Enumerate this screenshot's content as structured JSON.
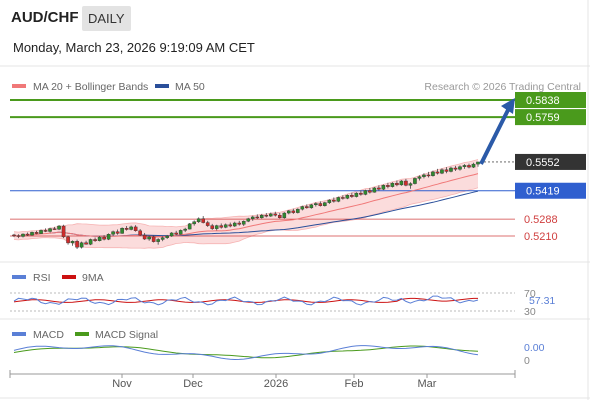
{
  "header": {
    "pair": "AUD/CHF",
    "period": "DAILY",
    "timestamp": "Monday, March 23, 2026 9:19:09 AM CET"
  },
  "legend": {
    "ma20_label": "MA 20 + Bollinger Bands",
    "ma50_label": "MA 50",
    "copyright": "Research © 2026 Trading Central"
  },
  "colors": {
    "ma20": "#f07878",
    "ma50": "#2a4f9a",
    "target": "#4a9a1c",
    "pivot": "#2f5fcf",
    "support": "#d04040",
    "last": "#333333",
    "rsi": "#5a7fd6",
    "rsi_ma": "#cc1111",
    "macd": "#5a7fd6",
    "macd_signal": "#4a9a1c"
  },
  "levels": [
    {
      "value": "0.5838",
      "kind": "target"
    },
    {
      "value": "0.5759",
      "kind": "target"
    },
    {
      "value": "0.5552",
      "kind": "last"
    },
    {
      "value": "0.5419",
      "kind": "pivot"
    },
    {
      "value": "0.5288",
      "kind": "support"
    },
    {
      "value": "0.5210",
      "kind": "support"
    }
  ],
  "rsi": {
    "title": "RSI",
    "ma_title": "9MA",
    "value": "57.31",
    "upper": "70",
    "lower": "30"
  },
  "macd": {
    "title": "MACD",
    "signal_title": "MACD Signal",
    "value": "0.00",
    "zero": "0"
  },
  "x_axis": {
    "labels": [
      "Nov",
      "Dec",
      "2026",
      "Feb",
      "Mar"
    ]
  },
  "chart_data": {
    "type": "candlestick",
    "symbol": "AUD/CHF",
    "timeframe": "DAILY",
    "ylim": [
      0.518,
      0.586
    ],
    "candles": [
      [
        0.5215,
        0.522,
        0.5205,
        0.5212
      ],
      [
        0.5212,
        0.5218,
        0.52,
        0.5208
      ],
      [
        0.5208,
        0.5222,
        0.5203,
        0.5219
      ],
      [
        0.5219,
        0.5226,
        0.521,
        0.5214
      ],
      [
        0.5214,
        0.523,
        0.5212,
        0.5227
      ],
      [
        0.5227,
        0.5234,
        0.5218,
        0.5221
      ],
      [
        0.5221,
        0.524,
        0.5219,
        0.5236
      ],
      [
        0.5236,
        0.5245,
        0.5228,
        0.5231
      ],
      [
        0.5231,
        0.5248,
        0.5226,
        0.5244
      ],
      [
        0.5244,
        0.5252,
        0.5238,
        0.5241
      ],
      [
        0.5241,
        0.526,
        0.5237,
        0.5256
      ],
      [
        0.5256,
        0.5262,
        0.52,
        0.5206
      ],
      [
        0.5206,
        0.5212,
        0.517,
        0.5178
      ],
      [
        0.5178,
        0.519,
        0.5165,
        0.5186
      ],
      [
        0.5186,
        0.5193,
        0.515,
        0.5158
      ],
      [
        0.5158,
        0.5184,
        0.5152,
        0.5179
      ],
      [
        0.5179,
        0.5188,
        0.517,
        0.5172
      ],
      [
        0.5172,
        0.5198,
        0.5168,
        0.5194
      ],
      [
        0.5194,
        0.5203,
        0.5183,
        0.5188
      ],
      [
        0.5188,
        0.521,
        0.5185,
        0.5205
      ],
      [
        0.5205,
        0.5214,
        0.519,
        0.5195
      ],
      [
        0.5195,
        0.5222,
        0.5191,
        0.5218
      ],
      [
        0.5218,
        0.5235,
        0.521,
        0.523
      ],
      [
        0.523,
        0.524,
        0.5216,
        0.5222
      ],
      [
        0.5222,
        0.525,
        0.522,
        0.5246
      ],
      [
        0.5246,
        0.5256,
        0.5235,
        0.524
      ],
      [
        0.524,
        0.5258,
        0.5236,
        0.5252
      ],
      [
        0.5252,
        0.526,
        0.523,
        0.5234
      ],
      [
        0.5234,
        0.5242,
        0.521,
        0.5214
      ],
      [
        0.5214,
        0.5224,
        0.5192,
        0.5196
      ],
      [
        0.5196,
        0.521,
        0.5188,
        0.5206
      ],
      [
        0.5206,
        0.5212,
        0.518,
        0.5184
      ],
      [
        0.5184,
        0.52,
        0.517,
        0.5194
      ],
      [
        0.5194,
        0.5208,
        0.5186,
        0.5202
      ],
      [
        0.5202,
        0.5215,
        0.5196,
        0.521
      ],
      [
        0.521,
        0.5228,
        0.5206,
        0.5224
      ],
      [
        0.5224,
        0.5234,
        0.5214,
        0.5218
      ],
      [
        0.5218,
        0.524,
        0.5216,
        0.5236
      ],
      [
        0.5236,
        0.5248,
        0.5228,
        0.5242
      ],
      [
        0.5242,
        0.527,
        0.524,
        0.5266
      ],
      [
        0.5266,
        0.5282,
        0.5258,
        0.5276
      ],
      [
        0.5276,
        0.5296,
        0.527,
        0.529
      ],
      [
        0.529,
        0.5302,
        0.5268,
        0.5272
      ],
      [
        0.5272,
        0.528,
        0.5252,
        0.5258
      ],
      [
        0.5258,
        0.5266,
        0.5238,
        0.5244
      ],
      [
        0.5244,
        0.5262,
        0.5236,
        0.5258
      ],
      [
        0.5258,
        0.5268,
        0.5244,
        0.525
      ],
      [
        0.525,
        0.5268,
        0.5246,
        0.5262
      ],
      [
        0.5262,
        0.5272,
        0.525,
        0.5256
      ],
      [
        0.5256,
        0.5276,
        0.5252,
        0.527
      ],
      [
        0.527,
        0.528,
        0.5258,
        0.5264
      ],
      [
        0.5264,
        0.5282,
        0.5256,
        0.5278
      ],
      [
        0.5278,
        0.5294,
        0.5274,
        0.529
      ],
      [
        0.529,
        0.5304,
        0.528,
        0.5298
      ],
      [
        0.5298,
        0.531,
        0.5288,
        0.5294
      ],
      [
        0.5294,
        0.5312,
        0.529,
        0.5306
      ],
      [
        0.5306,
        0.5316,
        0.5296,
        0.5302
      ],
      [
        0.5302,
        0.5318,
        0.5298,
        0.5312
      ],
      [
        0.5312,
        0.5322,
        0.53,
        0.5306
      ],
      [
        0.5306,
        0.5316,
        0.529,
        0.5294
      ],
      [
        0.5294,
        0.532,
        0.529,
        0.5316
      ],
      [
        0.5316,
        0.533,
        0.531,
        0.5326
      ],
      [
        0.5326,
        0.5336,
        0.5312,
        0.5318
      ],
      [
        0.5318,
        0.5338,
        0.5314,
        0.5334
      ],
      [
        0.5334,
        0.535,
        0.5328,
        0.5346
      ],
      [
        0.5346,
        0.5356,
        0.5336,
        0.534
      ],
      [
        0.534,
        0.5358,
        0.5336,
        0.5354
      ],
      [
        0.5354,
        0.5366,
        0.5346,
        0.536
      ],
      [
        0.536,
        0.537,
        0.5346,
        0.535
      ],
      [
        0.535,
        0.5368,
        0.5346,
        0.5364
      ],
      [
        0.5364,
        0.538,
        0.5358,
        0.5376
      ],
      [
        0.5376,
        0.5388,
        0.5364,
        0.537
      ],
      [
        0.537,
        0.5392,
        0.5366,
        0.5388
      ],
      [
        0.5388,
        0.5398,
        0.5378,
        0.5384
      ],
      [
        0.5384,
        0.5402,
        0.538,
        0.5398
      ],
      [
        0.5398,
        0.541,
        0.5386,
        0.5392
      ],
      [
        0.5392,
        0.5412,
        0.5388,
        0.5408
      ],
      [
        0.5408,
        0.542,
        0.5396,
        0.5402
      ],
      [
        0.5402,
        0.5424,
        0.5398,
        0.542
      ],
      [
        0.542,
        0.5432,
        0.5406,
        0.5412
      ],
      [
        0.5412,
        0.5436,
        0.541,
        0.5432
      ],
      [
        0.5432,
        0.5444,
        0.542,
        0.5426
      ],
      [
        0.5426,
        0.5448,
        0.5422,
        0.5444
      ],
      [
        0.5444,
        0.5456,
        0.543,
        0.5438
      ],
      [
        0.5438,
        0.5458,
        0.5434,
        0.5454
      ],
      [
        0.5454,
        0.5466,
        0.544,
        0.5446
      ],
      [
        0.5446,
        0.5468,
        0.5442,
        0.5464
      ],
      [
        0.5464,
        0.5474,
        0.544,
        0.5444
      ],
      [
        0.5444,
        0.5458,
        0.5428,
        0.5452
      ],
      [
        0.5452,
        0.548,
        0.5448,
        0.5476
      ],
      [
        0.5476,
        0.549,
        0.5466,
        0.5484
      ],
      [
        0.5484,
        0.55,
        0.5476,
        0.5492
      ],
      [
        0.5492,
        0.5506,
        0.548,
        0.5488
      ],
      [
        0.5488,
        0.5512,
        0.5484,
        0.5506
      ],
      [
        0.5506,
        0.552,
        0.5494,
        0.55
      ],
      [
        0.55,
        0.5522,
        0.5496,
        0.5516
      ],
      [
        0.5516,
        0.5528,
        0.55,
        0.5508
      ],
      [
        0.5508,
        0.553,
        0.5504,
        0.5524
      ],
      [
        0.5524,
        0.5534,
        0.551,
        0.5518
      ],
      [
        0.5518,
        0.5536,
        0.5512,
        0.553
      ],
      [
        0.553,
        0.5542,
        0.552,
        0.5536
      ],
      [
        0.5536,
        0.5544,
        0.5522,
        0.5528
      ],
      [
        0.5528,
        0.5548,
        0.5524,
        0.5542
      ],
      [
        0.5542,
        0.555,
        0.553,
        0.5552
      ]
    ],
    "projection": {
      "from": 0.5552,
      "to": 0.5838
    }
  }
}
